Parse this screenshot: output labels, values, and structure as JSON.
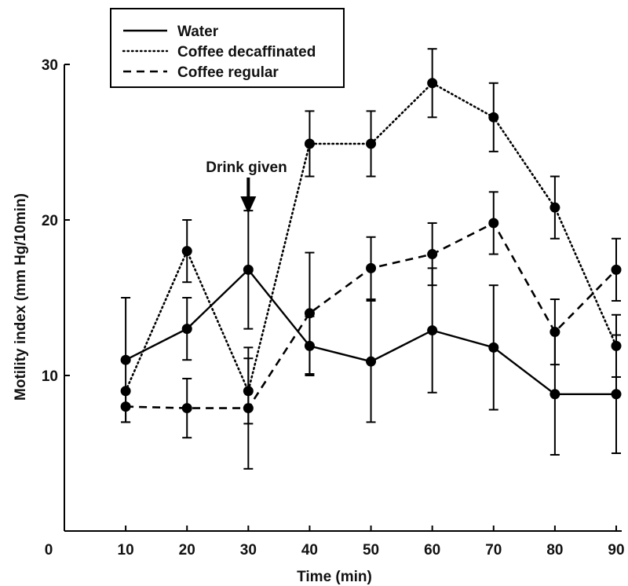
{
  "chart_data": {
    "type": "line",
    "xlabel": "Time (min)",
    "ylabel": "Motility index (mm Hg/10min)",
    "x": [
      10,
      20,
      30,
      40,
      50,
      60,
      70,
      80,
      90
    ],
    "xlim": [
      0,
      90
    ],
    "ylim": [
      0,
      30
    ],
    "x_ticks": [
      "0",
      "10",
      "20",
      "30",
      "40",
      "50",
      "60",
      "70",
      "80",
      "90"
    ],
    "y_ticks": [
      "10",
      "20",
      "30"
    ],
    "legend_position": "top-left",
    "series": [
      {
        "name": "Water",
        "style": "solid",
        "values": [
          11,
          13,
          16.8,
          11.9,
          10.9,
          12.9,
          11.8,
          8.8,
          8.8
        ],
        "error": [
          4,
          2,
          3.8,
          1.9,
          3.9,
          4,
          4,
          3.9,
          3.8
        ]
      },
      {
        "name": "Coffee decaffinated",
        "style": "dotted",
        "values": [
          9,
          18,
          9,
          24.9,
          24.9,
          28.8,
          26.6,
          20.8,
          11.9
        ],
        "error": [
          0,
          2,
          2.1,
          2.1,
          2.1,
          2.2,
          2.2,
          2,
          2
        ]
      },
      {
        "name": "Coffee regular",
        "style": "dashed",
        "values": [
          8,
          7.9,
          7.9,
          14,
          16.9,
          17.8,
          19.8,
          12.8,
          16.8
        ],
        "error": [
          1,
          1.9,
          3.9,
          3.9,
          2,
          2,
          2,
          2.1,
          2
        ]
      }
    ],
    "annotation": {
      "text": "Drink given",
      "x": 30
    }
  }
}
